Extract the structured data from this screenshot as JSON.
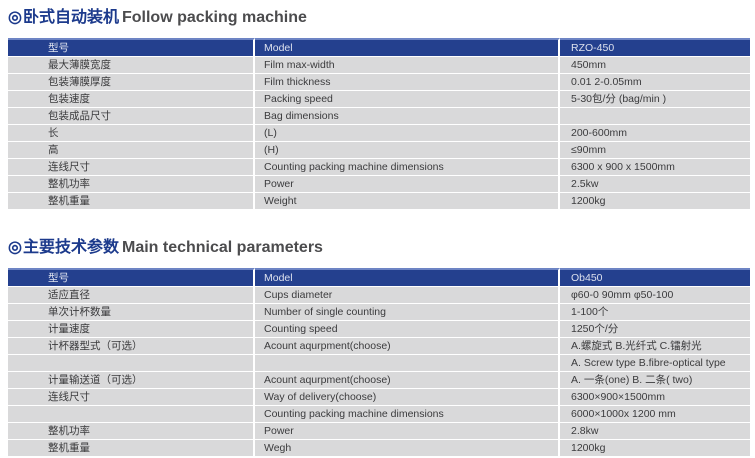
{
  "sections": [
    {
      "bullet": "◎",
      "title_zh": "卧式自动装机",
      "title_en": "Follow packing machine",
      "header": [
        "型号",
        "Model",
        "RZO-450"
      ],
      "rows": [
        [
          "最大薄膜宽度",
          "Film max-width",
          "450mm"
        ],
        [
          "包装薄膜厚度",
          "Film thickness",
          "0.01 2-0.05mm"
        ],
        [
          "包装速度",
          "Packing speed",
          "5-30包/分 (bag/min )"
        ],
        [
          "包装成品尺寸",
          "Bag dimensions",
          ""
        ],
        [
          "长",
          "(L)",
          "200-600mm"
        ],
        [
          "高",
          "(H)",
          "≤90mm"
        ],
        [
          "连线尺寸",
          "Counting packing machine dimensions",
          "6300 x 900 x 1500mm"
        ],
        [
          "整机功率",
          "Power",
          "2.5kw"
        ],
        [
          "整机重量",
          "Weight",
          "1200kg"
        ]
      ]
    },
    {
      "bullet": "◎",
      "title_zh": "主要技术参数",
      "title_en": "Main technical parameters",
      "header": [
        "型号",
        "Model",
        "Ob450"
      ],
      "rows": [
        [
          "适应直径",
          "Cups diameter",
          "φ60-0 90mm  φ50-100"
        ],
        [
          "单次计杯数量",
          "Number of single counting",
          "1-100个"
        ],
        [
          "计量速度",
          "Counting speed",
          "1250个/分"
        ],
        [
          "计杯器型式（可选）",
          "Acount aqurpment(choose)",
          "A.螺旋式   B.光纤式   C.镭射光"
        ],
        [
          "",
          "",
          "A. Screw type   B.fibre-optical type"
        ],
        [
          "计量输送道（可选）",
          "Acount aqurpment(choose)",
          "A. 一条(one)   B. 二条( two)"
        ],
        [
          "连线尺寸",
          "Way of delivery(choose)",
          "6300×900×1500mm"
        ],
        [
          "",
          "Counting packing machine dimensions",
          "6000×1000x 1200 mm"
        ],
        [
          "整机功率",
          "Power",
          "2.8kw"
        ],
        [
          "整机重量",
          "Wegh",
          "1200kg"
        ]
      ]
    }
  ]
}
